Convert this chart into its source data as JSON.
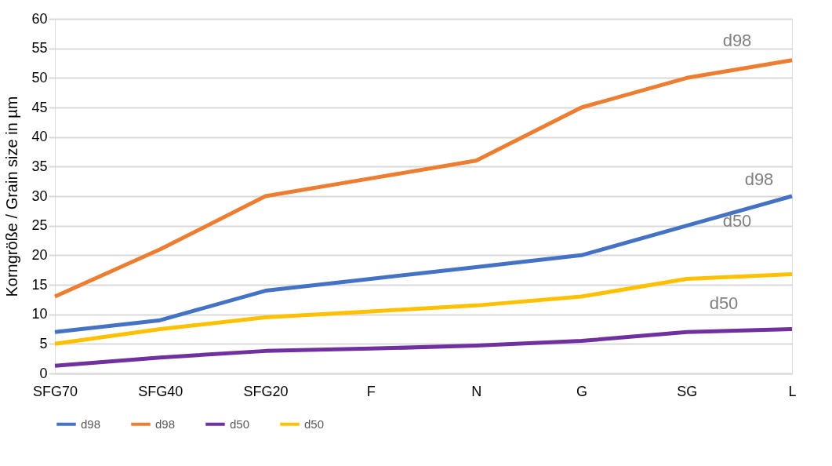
{
  "chart_data": {
    "type": "line",
    "ylabel": "Korngröße / Grain size in µm",
    "categories": [
      "SFG70",
      "SFG40",
      "SFG20",
      "F",
      "N",
      "G",
      "SG",
      "L"
    ],
    "series": [
      {
        "name": "d98",
        "color": "#4472c4",
        "values": [
          7,
          9,
          14,
          16,
          18,
          20,
          25,
          30
        ]
      },
      {
        "name": "d98",
        "color": "#ed7d31",
        "values": [
          13,
          21,
          30,
          33,
          36,
          45,
          50,
          53
        ]
      },
      {
        "name": "d50",
        "color": "#7030a0",
        "values": [
          1.3,
          2.7,
          3.8,
          4.2,
          4.7,
          5.5,
          7,
          7.5
        ]
      },
      {
        "name": "d50",
        "color": "#ffc000",
        "values": [
          5,
          7.5,
          9.5,
          10.5,
          11.5,
          13,
          16,
          16.8
        ]
      }
    ],
    "annotations": [
      "d98",
      "d98",
      "d50",
      "d50"
    ],
    "ylim": [
      0,
      60
    ],
    "yticks": [
      0,
      5,
      10,
      15,
      20,
      25,
      30,
      35,
      40,
      45,
      50,
      55,
      60
    ],
    "grid": "y",
    "legend": "bottom",
    "marker": "none",
    "line_style": "solid"
  }
}
